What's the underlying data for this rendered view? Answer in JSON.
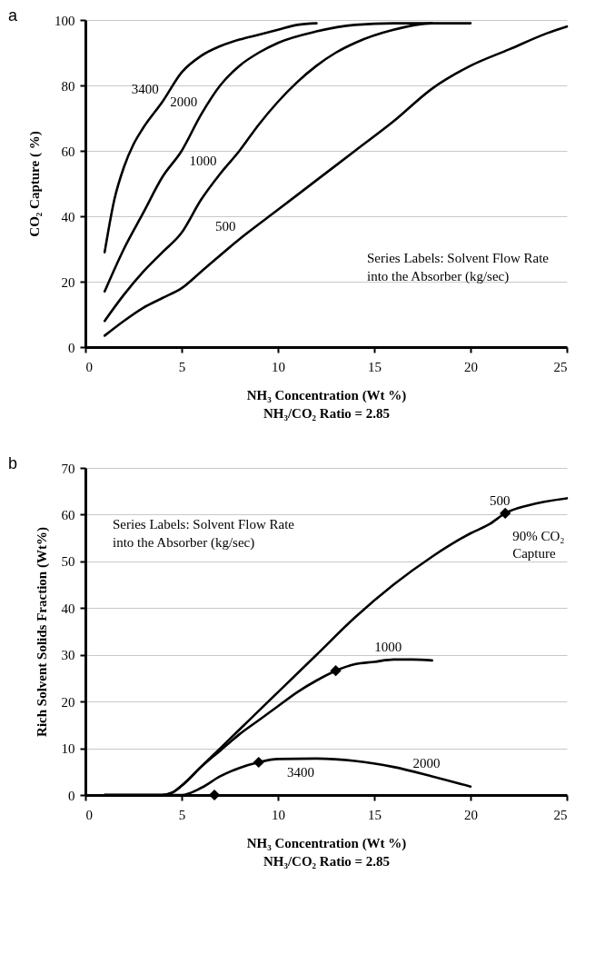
{
  "chart_data": [
    {
      "type": "line",
      "title": "a",
      "xlabel": "NH₃ Concentration (Wt %)\nNH₃/CO₂ Ratio = 2.85",
      "ylabel": "CO₂ Capture ( %)",
      "xlim": [
        0,
        25
      ],
      "xticks": [
        0,
        5,
        10,
        15,
        20,
        25
      ],
      "ylim": [
        0,
        100
      ],
      "yticks": [
        0,
        20,
        40,
        60,
        80,
        100
      ],
      "grid": "y",
      "line_style": "solid",
      "annotations": [
        "Series Labels: Solvent Flow Rate into the Absorber (kg/sec)"
      ],
      "series": [
        {
          "name": "3400",
          "color": "#000000",
          "x": [
            1,
            1.5,
            2,
            2.5,
            3,
            4,
            5,
            6,
            7,
            8,
            9,
            10,
            11,
            12
          ],
          "values": [
            29,
            45,
            55,
            62,
            67,
            75,
            84,
            89,
            92,
            94,
            95.5,
            97,
            98.5,
            99
          ]
        },
        {
          "name": "2000",
          "color": "#000000",
          "x": [
            1,
            2,
            3,
            4,
            5,
            6,
            7,
            8,
            9,
            10,
            12,
            14,
            16,
            18
          ],
          "values": [
            17,
            30,
            41,
            52,
            60,
            71,
            80,
            86,
            90,
            93,
            96.5,
            98.5,
            99,
            99
          ]
        },
        {
          "name": "1000",
          "color": "#000000",
          "x": [
            1,
            2,
            3,
            4,
            5,
            6,
            7,
            8,
            9,
            10,
            11,
            12,
            13,
            14,
            16,
            18,
            20
          ],
          "values": [
            8,
            16,
            23,
            29,
            35,
            45,
            53,
            60,
            68,
            75,
            81,
            86,
            90,
            93,
            97,
            99,
            99
          ]
        },
        {
          "name": "500",
          "color": "#000000",
          "x": [
            1,
            2,
            3,
            4,
            5,
            6,
            8,
            10,
            12,
            14,
            16,
            18,
            20,
            22,
            24,
            25
          ],
          "values": [
            3.5,
            8,
            12,
            15,
            18,
            23,
            33,
            42,
            51,
            60,
            69,
            79,
            86,
            91,
            96,
            98
          ]
        }
      ]
    },
    {
      "type": "line",
      "title": "b",
      "xlabel": "NH₃ Concentration (Wt %)\nNH₃/CO₂ Ratio = 2.85",
      "ylabel": "Rich Solvent Solids Fraction (Wt%)",
      "xlim": [
        0,
        25
      ],
      "xticks": [
        0,
        5,
        10,
        15,
        20,
        25
      ],
      "ylim": [
        0,
        70
      ],
      "yticks": [
        0,
        10,
        20,
        30,
        40,
        50,
        60,
        70
      ],
      "grid": "y",
      "line_style": "solid",
      "annotations": [
        "Series Labels: Solvent Flow Rate into the Absorber (kg/sec)",
        "3400",
        {
          "text": "90% CO₂ Capture",
          "x": 21.8,
          "y": 60.3
        }
      ],
      "series": [
        {
          "name": "500",
          "color": "#000000",
          "x": [
            1,
            4,
            4.5,
            5,
            6,
            7,
            8,
            9,
            10,
            12,
            14,
            16,
            18,
            20,
            21,
            21.8,
            23,
            25
          ],
          "values": [
            0,
            0,
            0.5,
            2,
            6,
            10,
            14,
            18,
            22,
            30,
            38,
            45,
            51,
            56,
            58,
            60.3,
            62,
            63.5
          ]
        },
        {
          "name": "1000",
          "color": "#000000",
          "x": [
            1,
            4,
            4.5,
            5,
            6,
            7,
            8,
            9,
            10,
            11,
            12,
            13,
            14,
            15,
            16,
            17,
            18
          ],
          "values": [
            0,
            0,
            0.5,
            2,
            6,
            9.5,
            13,
            16,
            19,
            22,
            24.5,
            26.6,
            28,
            28.5,
            29,
            29,
            28.8
          ]
        },
        {
          "name": "2000",
          "color": "#000000",
          "x": [
            1,
            5,
            6,
            7,
            8,
            9,
            10,
            12,
            14,
            16,
            18,
            20
          ],
          "values": [
            0,
            0,
            1.5,
            4,
            5.8,
            7,
            7.7,
            7.8,
            7.3,
            6,
            4,
            1.8
          ]
        },
        {
          "type": "scatter",
          "marker": "diamond",
          "color": "#000000",
          "x": [
            21.8,
            13,
            9,
            6.7
          ],
          "values": [
            60.3,
            26.6,
            7,
            0
          ]
        }
      ]
    }
  ]
}
